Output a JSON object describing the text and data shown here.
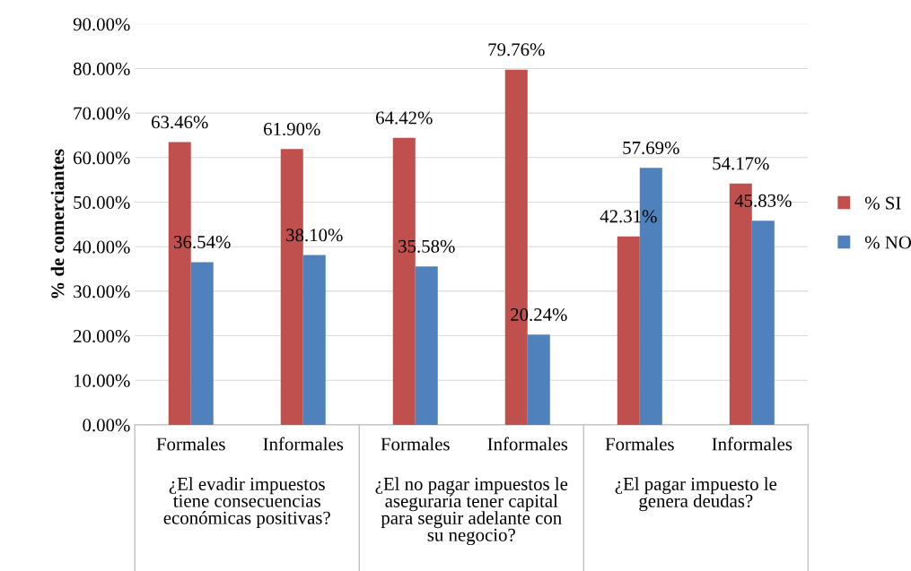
{
  "chart_data": {
    "type": "bar",
    "ylabel": "% de comerciantes",
    "categories": [
      "Formales",
      "Informales",
      "Formales",
      "Informales",
      "Formales",
      "Informales"
    ],
    "series": [
      {
        "name": "% SI",
        "color": "#c0504d",
        "values": [
          63.46,
          61.9,
          64.42,
          79.76,
          42.31,
          54.17
        ],
        "value_labels": [
          "63.46%",
          "61.90%",
          "64.42%",
          "79.76%",
          "42.31%",
          "54.17%"
        ]
      },
      {
        "name": "% NO",
        "color": "#4f81bd",
        "values": [
          36.54,
          38.1,
          35.58,
          20.24,
          57.69,
          45.83
        ],
        "value_labels": [
          "36.54%",
          "38.10%",
          "35.58%",
          "20.24%",
          "57.69%",
          "45.83%"
        ]
      }
    ],
    "annotations": [
      "¿El evadir impuestos\ntiene consecuencias\neconómicas positivas?",
      "¿El no pagar impuestos le\naseguraría tener capital\npara seguir adelante con\nsu negocio?",
      "¿El pagar impuesto le\ngenera deudas?"
    ],
    "ylim": [
      0,
      90
    ],
    "yticks": [
      {
        "value": 0,
        "label": "0.00%"
      },
      {
        "value": 10,
        "label": "10.00%"
      },
      {
        "value": 20,
        "label": "20.00%"
      },
      {
        "value": 30,
        "label": "30.00%"
      },
      {
        "value": 40,
        "label": "40.00%"
      },
      {
        "value": 50,
        "label": "50.00%"
      },
      {
        "value": 60,
        "label": "60.00%"
      },
      {
        "value": 70,
        "label": "70.00%"
      },
      {
        "value": 80,
        "label": "80.00%"
      },
      {
        "value": 90,
        "label": "90.00%"
      }
    ],
    "grid": "y",
    "legend": "right"
  }
}
